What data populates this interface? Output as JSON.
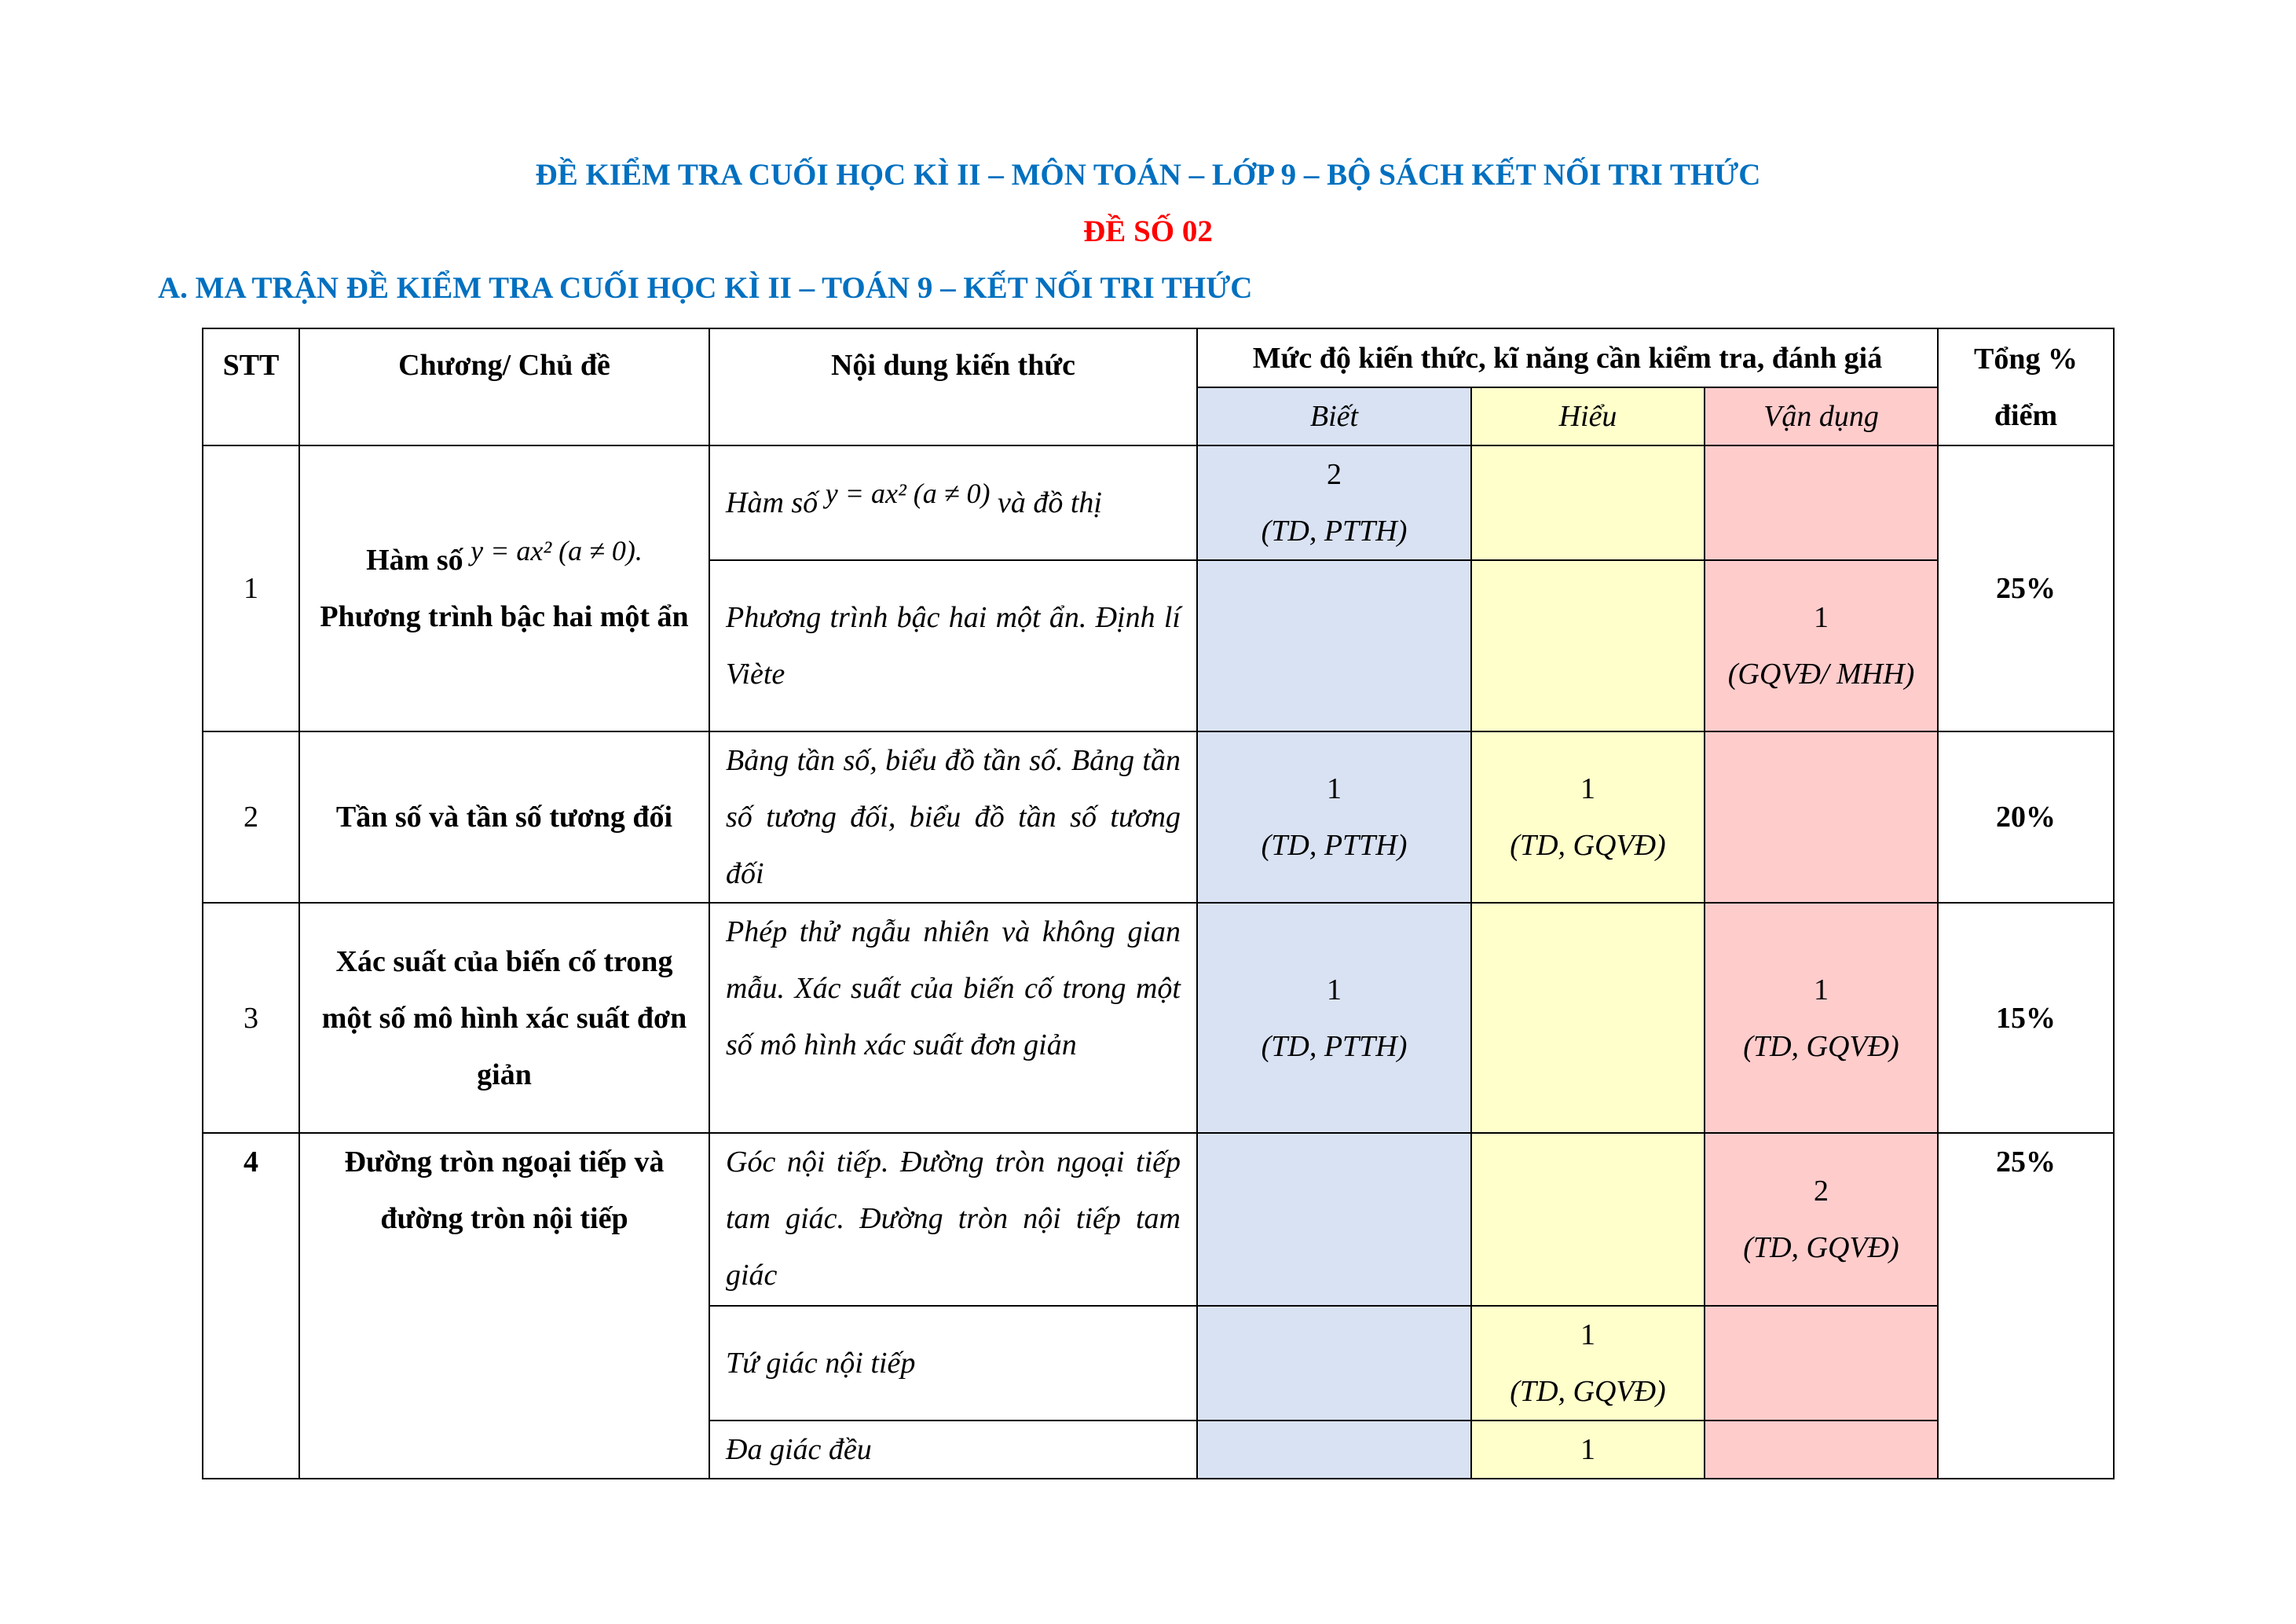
{
  "document": {
    "title": "ĐỀ KIỂM TRA CUỐI HỌC KÌ II – MÔN TOÁN – LỚP 9 – BỘ SÁCH KẾT NỐI TRI THỨC",
    "subtitle": "ĐỀ SỐ 02",
    "section_heading": "A. MA TRẬN ĐỀ KIỂM TRA CUỐI HỌC KÌ II – TOÁN 9 – KẾT NỐI TRI THỨC",
    "colors": {
      "title": "#0070c0",
      "subtitle": "#ff0000",
      "biet": "#d9e2f3",
      "hieu": "#ffffcc",
      "van_dung": "#ffcccc"
    }
  },
  "table": {
    "headers": {
      "stt": "STT",
      "chuong": "Chương/ Chủ đề",
      "noi_dung": "Nội dung kiến thức",
      "muc_do": "Mức độ kiến thức, kĩ năng cần kiểm tra, đánh giá",
      "biet": "Biết",
      "hieu": "Hiểu",
      "van_dung": "Vận dụng",
      "tong_1": "Tổng %",
      "tong_2": "điểm"
    },
    "rows": [
      {
        "stt": "1",
        "chuong_prefix": "Hàm số",
        "chuong_math": "y = ax² (a ≠ 0).",
        "chuong_rest": "Phương trình bậc hai một ẩn",
        "tong": "25%",
        "items": [
          {
            "noi_dung_prefix": "Hàm số",
            "noi_dung_math": "y = ax²  (a ≠ 0)",
            "noi_dung_suffix": "và đồ thị",
            "biet_n": "2",
            "biet_c": "(TD, PTTH)",
            "hieu_n": "",
            "hieu_c": "",
            "vd_n": "",
            "vd_c": ""
          },
          {
            "noi_dung": "Phương trình bậc hai một ẩn. Định lí Viète",
            "biet_n": "",
            "biet_c": "",
            "hieu_n": "",
            "hieu_c": "",
            "vd_n": "1",
            "vd_c": "(GQVĐ/ MHH)"
          }
        ]
      },
      {
        "stt": "2",
        "chuong": "Tần số và tần số tương đối",
        "tong": "20%",
        "items": [
          {
            "noi_dung": "Bảng tần số, biểu đồ tần số. Bảng tần số tương đối, biểu đồ tần số tương đối",
            "biet_n": "1",
            "biet_c": "(TD, PTTH)",
            "hieu_n": "1",
            "hieu_c": "(TD, GQVĐ)",
            "vd_n": "",
            "vd_c": ""
          }
        ]
      },
      {
        "stt": "3",
        "chuong": "Xác suất của biến cố trong một số mô hình xác suất đơn giản",
        "tong": "15%",
        "items": [
          {
            "noi_dung": "Phép thử ngẫu nhiên và không gian mẫu. Xác suất của biến cố trong một số mô hình xác suất đơn giản",
            "biet_n": "1",
            "biet_c": "(TD, PTTH)",
            "hieu_n": "",
            "hieu_c": "",
            "vd_n": "1",
            "vd_c": "(TD, GQVĐ)"
          }
        ]
      },
      {
        "stt": "4",
        "chuong": "Đường tròn ngoại tiếp và đường tròn nội tiếp",
        "tong": "25%",
        "items": [
          {
            "noi_dung": "Góc nội tiếp. Đường tròn ngoại tiếp tam giác. Đường tròn nội tiếp tam giác",
            "vd_n": "2",
            "vd_c": "(TD, GQVĐ)"
          },
          {
            "noi_dung": "Tứ giác nội tiếp",
            "hieu_n": "1",
            "hieu_c": "(TD, GQVĐ)"
          },
          {
            "noi_dung": "Đa giác đều",
            "hieu_n": "1"
          }
        ]
      }
    ]
  }
}
